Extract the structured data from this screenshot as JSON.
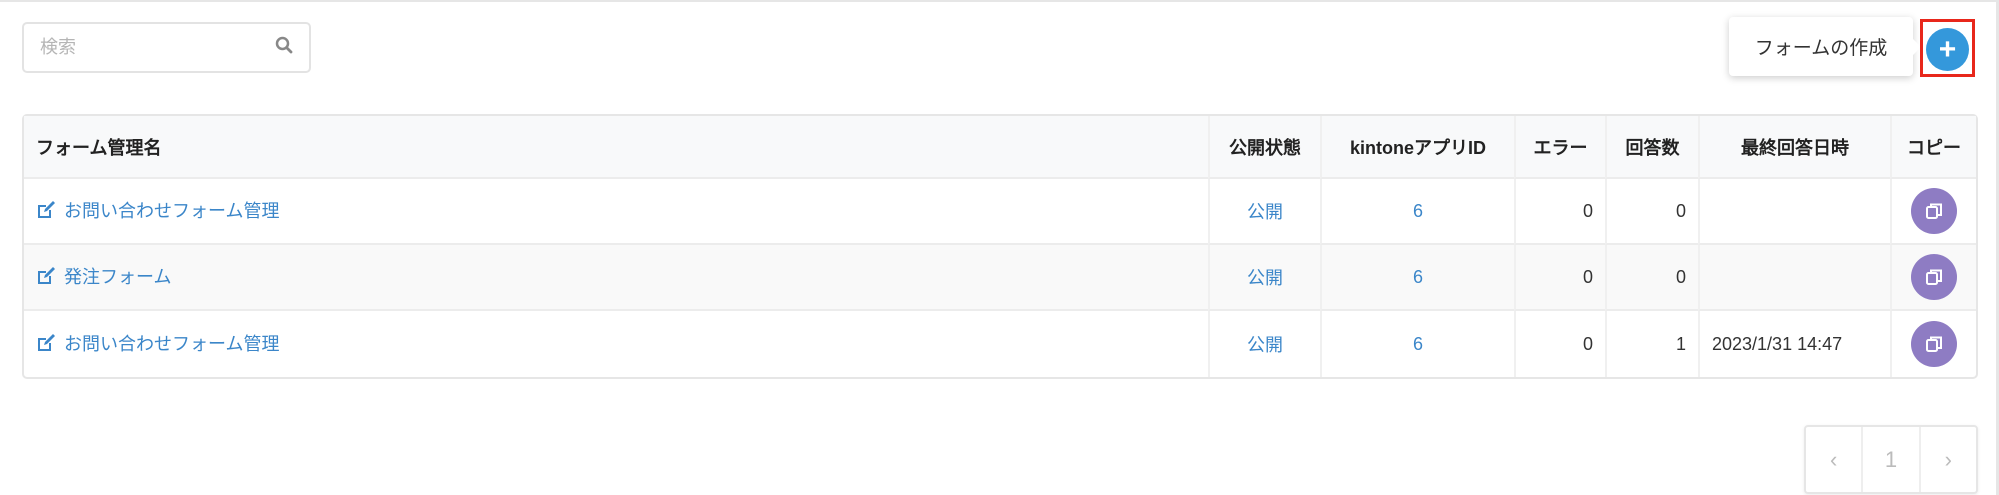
{
  "search": {
    "placeholder": "検索",
    "icon": "search-icon"
  },
  "create": {
    "tooltip": "フォームの作成",
    "label": "+",
    "color": "#3498db",
    "highlight_color": "#e8271b"
  },
  "table": {
    "headers": [
      "フォーム管理名",
      "公開状態",
      "kintoneアプリID",
      "エラー",
      "回答数",
      "最終回答日時",
      "コピー"
    ],
    "rows": [
      {
        "name": "お問い合わせフォーム管理",
        "status": "公開",
        "app_id": "6",
        "errors": "0",
        "answers": "0",
        "last_answer": ""
      },
      {
        "name": "発注フォーム",
        "status": "公開",
        "app_id": "6",
        "errors": "0",
        "answers": "0",
        "last_answer": ""
      },
      {
        "name": "お問い合わせフォーム管理",
        "status": "公開",
        "app_id": "6",
        "errors": "0",
        "answers": "1",
        "last_answer": "2023/1/31 14:47"
      }
    ],
    "copy_color": "#8e7cc3"
  },
  "pagination": {
    "prev": "‹",
    "page": "1",
    "next": "›"
  }
}
